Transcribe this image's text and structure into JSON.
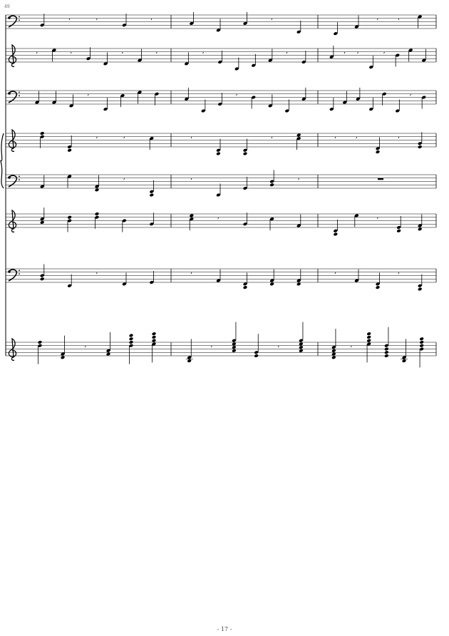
{
  "score": {
    "measure_number": "49",
    "page_number": "- 17 -",
    "staves": [
      {
        "clef": "bass"
      },
      {
        "clef": "treble"
      },
      {
        "clef": "bass"
      },
      {
        "clef": "treble",
        "brace": true
      },
      {
        "clef": "bass",
        "brace": true
      },
      {
        "clef": "treble"
      },
      {
        "clef": "bass"
      },
      {
        "clef": "treble"
      }
    ]
  }
}
